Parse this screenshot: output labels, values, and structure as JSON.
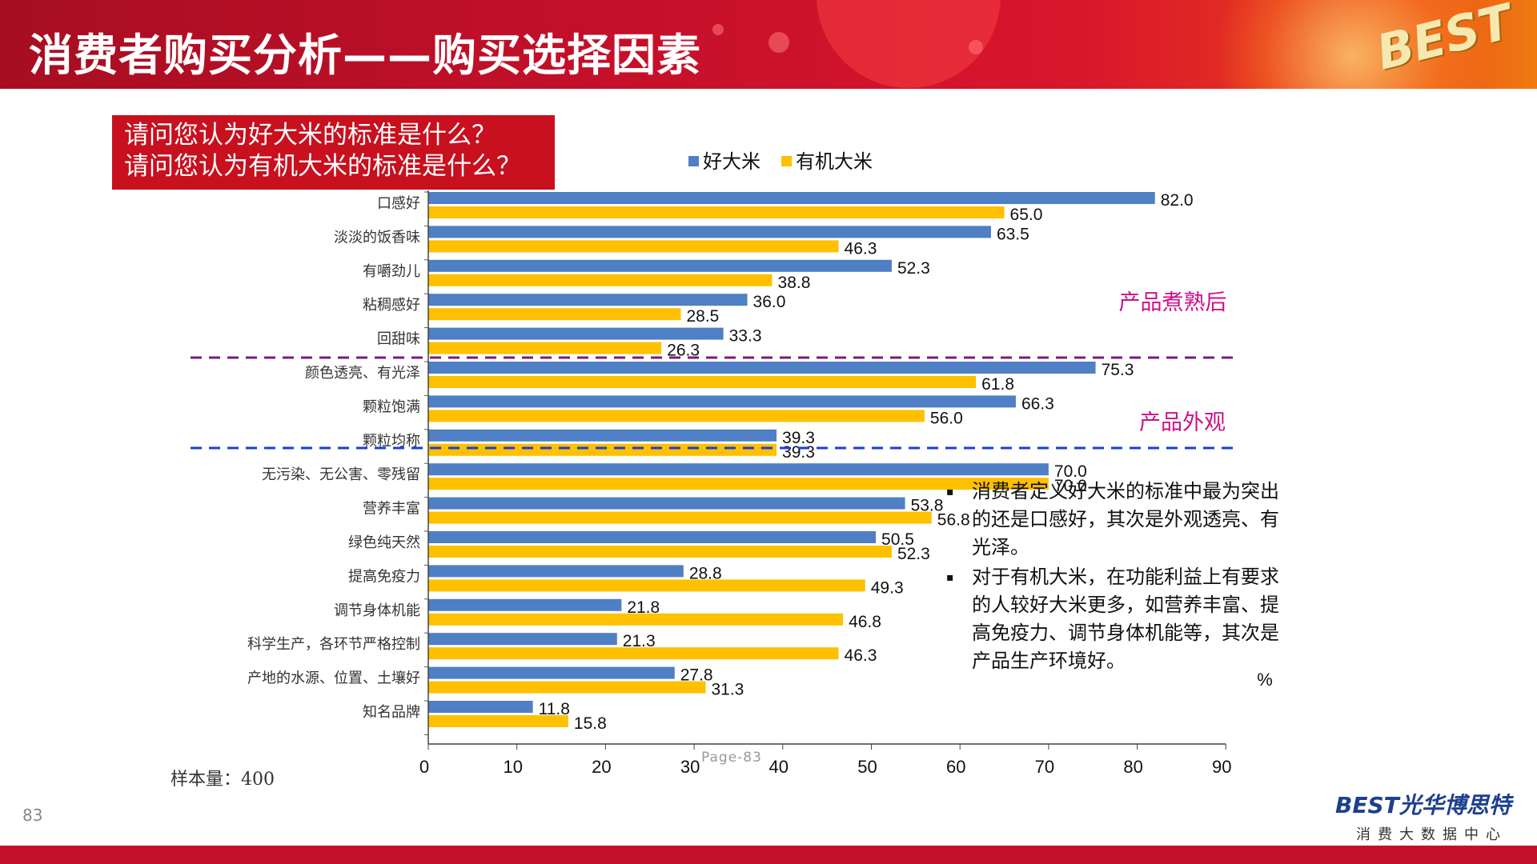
{
  "title": "消费者购买分析——购买选择因素",
  "logo_top": "BEST",
  "question_lines": [
    "请问您认为好大米的标准是什么？",
    "请问您认为有机大米的标准是什么？"
  ],
  "colors": {
    "series1": "#4f7fc4",
    "series2": "#ffc000",
    "header": "#c4102a",
    "section": "#cc1188",
    "divider1": "#7a1a7a",
    "divider2": "#1a3fd6"
  },
  "chart_data": {
    "type": "bar",
    "orientation": "horizontal",
    "categories": [
      "口感好",
      "淡淡的饭香味",
      "有嚼劲儿",
      "粘稠感好",
      "回甜味",
      "颜色透亮、有光泽",
      "颗粒饱满",
      "颗粒均称",
      "无污染、无公害、零残留",
      "营养丰富",
      "绿色纯天然",
      "提高免疫力",
      "调节身体机能",
      "科学生产，各环节严格控制",
      "产地的水源、位置、土壤好",
      "知名品牌"
    ],
    "series": [
      {
        "name": "好大米",
        "values": [
          82.0,
          63.5,
          52.3,
          36.0,
          33.3,
          75.3,
          66.3,
          39.3,
          70.0,
          53.8,
          50.5,
          28.8,
          21.8,
          21.3,
          27.8,
          11.8
        ]
      },
      {
        "name": "有机大米",
        "values": [
          65.0,
          46.3,
          38.8,
          28.5,
          26.3,
          61.8,
          56.0,
          39.3,
          70.0,
          56.8,
          52.3,
          49.3,
          46.8,
          46.3,
          31.3,
          15.8
        ]
      }
    ],
    "value_labels": [
      [
        "82.0",
        "63.5",
        "52.3",
        "36.0",
        "33.3",
        "75.3",
        "66.3",
        "39.3",
        "70.0",
        "53.8",
        "50.5",
        "28.8",
        "21.8",
        "21.3",
        "27.8",
        "11.8"
      ],
      [
        "65.0",
        "46.3",
        "38.8",
        "28.5",
        "26.3",
        "61.8",
        "56.0",
        "39.3",
        "70.0",
        "56.8",
        "52.3",
        "49.3",
        "46.8",
        "46.3",
        "31.3",
        "15.8"
      ]
    ],
    "xlim": [
      0,
      90
    ],
    "xticks": [
      "0",
      "10",
      "20",
      "30",
      "40",
      "50",
      "60",
      "70",
      "80",
      "90"
    ],
    "unit": "%",
    "legend": "top",
    "grid": false,
    "sections": [
      {
        "label": "产品煮熟后"
      },
      {
        "label": "产品外观"
      }
    ]
  },
  "bullets": [
    "消费者定义好大米的标准中最为突出的还是口感好，其次是外观透亮、有光泽。",
    "对于有机大米，在功能利益上有要求的人较好大米更多，如营养丰富、提高免疫力、调节身体机能等，其次是产品生产环境好。"
  ],
  "bullet_marker": "▪",
  "sample_size": "样本量：400",
  "page_number": "83",
  "watermark": "Page-83",
  "brand": {
    "name": "BEST光华博思特",
    "subtitle": "消费大数据中心"
  }
}
